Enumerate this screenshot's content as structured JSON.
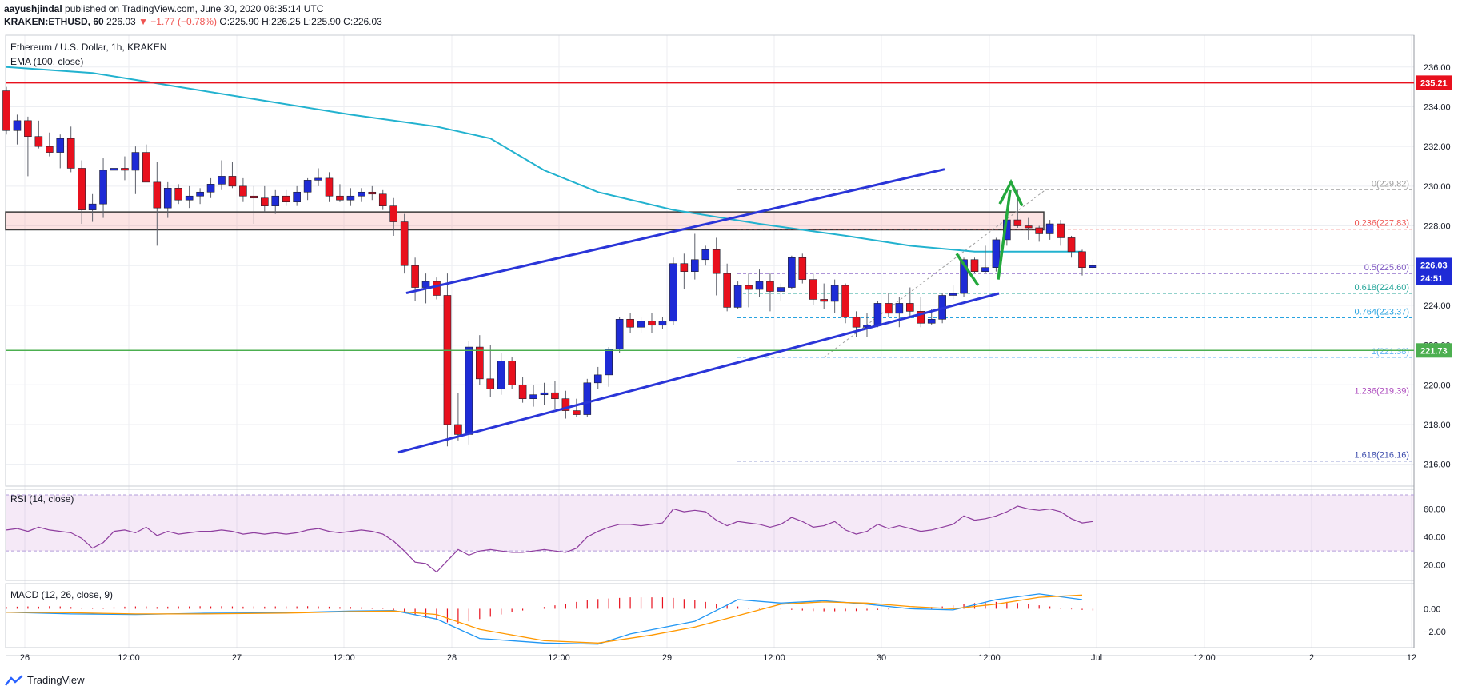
{
  "header": {
    "author": "aayushjindal",
    "published_text": "published on TradingView.com, June 30, 2020 06:35:14 UTC",
    "symbol": "KRAKEN:ETHUSD, 60",
    "last": "226.03",
    "change": "▼ −1.77 (−0.78%)",
    "ohlc": "O:225.90 H:226.25 L:225.90 C:226.03"
  },
  "legend": {
    "title": "Ethereum / U.S. Dollar, 1h, KRAKEN",
    "ema": "EMA (100, close)",
    "rsi": "RSI (14, close)",
    "macd": "MACD (12, 26, close, 9)"
  },
  "footer": {
    "brand": "TradingView"
  },
  "colors": {
    "up": "#1e2bd6",
    "down": "#e8101d",
    "ema": "#22b2cf",
    "trend": "#2a35d8",
    "resist": "#e8101d",
    "support": "#4caf50",
    "arrow": "#23a83c"
  },
  "chart_data": [
    {
      "type": "candlestick",
      "title": "Ethereum / U.S. Dollar, 1h, KRAKEN",
      "x_ticks": [
        "26",
        "12:00",
        "27",
        "12:00",
        "28",
        "12:00",
        "29",
        "12:00",
        "30",
        "12:00",
        "Jul",
        "12:00",
        "2",
        "12"
      ],
      "y_ticks": [
        "236.00",
        "234.00",
        "232.00",
        "230.00",
        "228.00",
        "226.00",
        "224.00",
        "222.00",
        "220.00",
        "218.00",
        "216.00"
      ],
      "ylim": [
        214.9,
        237.6
      ],
      "price_labels": [
        {
          "text": "235.21",
          "value": 235.21,
          "color": "#e8101d"
        },
        {
          "text": "226.03",
          "value": 226.03,
          "color": "#1e2bd6"
        },
        {
          "text": "24:51",
          "value": 225.37,
          "color": "#1e2bd6"
        },
        {
          "text": "221.73",
          "value": 221.73,
          "color": "#4caf50"
        }
      ],
      "fib_levels": [
        {
          "label": "0(229.82)",
          "value": 229.82,
          "color": "#9e9e9e"
        },
        {
          "label": "0.236(227.83)",
          "value": 227.83,
          "color": "#ef5350"
        },
        {
          "label": "0.5(225.60)",
          "value": 225.6,
          "color": "#7e57c2"
        },
        {
          "label": "0.618(224.60)",
          "value": 224.6,
          "color": "#26a69a"
        },
        {
          "label": "0.764(223.37)",
          "value": 223.37,
          "color": "#29a3e0"
        },
        {
          "label": "1(221.38)",
          "value": 221.38,
          "color": "#64b5f6"
        },
        {
          "label": "1.236(219.39)",
          "value": 219.39,
          "color": "#ab47bc"
        },
        {
          "label": "1.618(216.16)",
          "value": 216.16,
          "color": "#3949ab"
        }
      ],
      "candles": [
        [
          234.8,
          235.0,
          232.6,
          232.8
        ],
        [
          232.8,
          233.6,
          232.1,
          233.3
        ],
        [
          233.3,
          233.5,
          230.5,
          232.5
        ],
        [
          232.5,
          233.3,
          231.9,
          232.0
        ],
        [
          232.0,
          232.7,
          231.5,
          231.7
        ],
        [
          231.7,
          232.6,
          230.9,
          232.4
        ],
        [
          232.4,
          233.0,
          230.7,
          230.9
        ],
        [
          230.9,
          231.3,
          228.1,
          228.8
        ],
        [
          228.8,
          229.6,
          228.2,
          229.1
        ],
        [
          229.1,
          231.4,
          228.4,
          230.8
        ],
        [
          230.8,
          232.1,
          230.2,
          230.9
        ],
        [
          230.9,
          231.5,
          230.3,
          230.8
        ],
        [
          230.8,
          232.0,
          229.6,
          231.7
        ],
        [
          231.7,
          232.1,
          230.2,
          230.2
        ],
        [
          230.2,
          231.2,
          227.0,
          228.9
        ],
        [
          228.9,
          230.2,
          228.4,
          229.9
        ],
        [
          229.9,
          230.1,
          229.1,
          229.3
        ],
        [
          229.3,
          230.0,
          228.9,
          229.5
        ],
        [
          229.5,
          229.9,
          229.1,
          229.7
        ],
        [
          229.7,
          230.4,
          229.4,
          230.1
        ],
        [
          230.1,
          231.3,
          229.8,
          230.5
        ],
        [
          230.5,
          231.2,
          229.9,
          230.0
        ],
        [
          230.0,
          230.4,
          229.2,
          229.5
        ],
        [
          229.5,
          230.0,
          228.1,
          229.4
        ],
        [
          229.4,
          230.0,
          228.7,
          229.0
        ],
        [
          229.0,
          229.8,
          228.6,
          229.5
        ],
        [
          229.5,
          229.8,
          229.0,
          229.2
        ],
        [
          229.2,
          230.0,
          229.0,
          229.7
        ],
        [
          229.7,
          230.4,
          229.3,
          230.3
        ],
        [
          230.3,
          230.9,
          230.0,
          230.4
        ],
        [
          230.4,
          230.7,
          229.2,
          229.5
        ],
        [
          229.5,
          230.1,
          229.2,
          229.3
        ],
        [
          229.3,
          229.9,
          229.0,
          229.5
        ],
        [
          229.5,
          229.9,
          229.2,
          229.7
        ],
        [
          229.7,
          230.0,
          229.3,
          229.6
        ],
        [
          229.6,
          229.8,
          228.8,
          229.0
        ],
        [
          229.0,
          229.4,
          227.5,
          228.2
        ],
        [
          228.2,
          228.6,
          225.6,
          226.0
        ],
        [
          226.0,
          226.4,
          224.2,
          224.9
        ],
        [
          224.9,
          225.6,
          224.1,
          225.2
        ],
        [
          225.2,
          225.4,
          224.3,
          224.5
        ],
        [
          224.5,
          225.6,
          216.9,
          218.0
        ],
        [
          218.0,
          219.6,
          217.2,
          217.5
        ],
        [
          217.5,
          222.2,
          217.0,
          221.9
        ],
        [
          221.9,
          222.5,
          220.0,
          220.3
        ],
        [
          220.3,
          222.0,
          219.4,
          219.8
        ],
        [
          219.8,
          221.6,
          219.5,
          221.2
        ],
        [
          221.2,
          221.4,
          219.8,
          220.0
        ],
        [
          220.0,
          220.4,
          219.1,
          219.3
        ],
        [
          219.3,
          220.0,
          218.9,
          219.5
        ],
        [
          219.5,
          220.1,
          219.0,
          219.6
        ],
        [
          219.6,
          220.2,
          218.8,
          219.3
        ],
        [
          219.3,
          219.7,
          218.3,
          218.7
        ],
        [
          218.7,
          219.3,
          218.4,
          218.5
        ],
        [
          218.5,
          220.3,
          218.4,
          220.1
        ],
        [
          220.1,
          220.9,
          219.8,
          220.5
        ],
        [
          220.5,
          221.9,
          219.9,
          221.8
        ],
        [
          221.8,
          223.4,
          221.6,
          223.3
        ],
        [
          223.3,
          223.6,
          222.6,
          222.9
        ],
        [
          222.9,
          223.4,
          222.6,
          223.2
        ],
        [
          223.2,
          223.6,
          222.6,
          223.0
        ],
        [
          223.0,
          223.4,
          222.8,
          223.2
        ],
        [
          223.2,
          226.4,
          223.0,
          226.1
        ],
        [
          226.1,
          226.6,
          224.8,
          225.7
        ],
        [
          225.7,
          227.6,
          225.3,
          226.3
        ],
        [
          226.3,
          227.0,
          226.0,
          226.8
        ],
        [
          226.8,
          227.4,
          224.5,
          225.6
        ],
        [
          225.6,
          226.1,
          223.7,
          223.9
        ],
        [
          223.9,
          225.2,
          223.8,
          225.0
        ],
        [
          225.0,
          225.6,
          223.9,
          224.8
        ],
        [
          224.8,
          225.8,
          224.4,
          225.2
        ],
        [
          225.2,
          225.6,
          223.7,
          224.7
        ],
        [
          224.7,
          225.1,
          224.2,
          224.9
        ],
        [
          224.9,
          226.5,
          224.8,
          226.4
        ],
        [
          226.4,
          226.6,
          225.1,
          225.3
        ],
        [
          225.3,
          225.6,
          224.0,
          224.3
        ],
        [
          224.3,
          225.1,
          223.8,
          224.2
        ],
        [
          224.2,
          225.3,
          223.6,
          225.0
        ],
        [
          225.0,
          225.1,
          223.1,
          223.4
        ],
        [
          223.4,
          223.7,
          222.4,
          222.9
        ],
        [
          222.9,
          223.6,
          222.4,
          223.0
        ],
        [
          223.0,
          224.2,
          222.9,
          224.1
        ],
        [
          224.1,
          224.6,
          223.4,
          223.6
        ],
        [
          223.6,
          224.4,
          222.9,
          224.1
        ],
        [
          224.1,
          224.9,
          223.4,
          223.7
        ],
        [
          223.7,
          224.4,
          222.9,
          223.1
        ],
        [
          223.1,
          223.8,
          223.0,
          223.3
        ],
        [
          223.3,
          224.6,
          223.1,
          224.5
        ],
        [
          224.5,
          225.0,
          224.3,
          224.6
        ],
        [
          224.6,
          226.4,
          224.4,
          226.3
        ],
        [
          226.3,
          226.4,
          225.6,
          225.7
        ],
        [
          225.7,
          227.0,
          225.6,
          225.9
        ],
        [
          225.9,
          227.4,
          225.7,
          227.3
        ],
        [
          227.3,
          228.5,
          227.0,
          228.3
        ],
        [
          228.3,
          229.8,
          227.9,
          228.0
        ],
        [
          228.0,
          228.4,
          227.3,
          227.9
        ],
        [
          227.9,
          228.0,
          227.2,
          227.6
        ],
        [
          227.6,
          228.3,
          227.3,
          228.1
        ],
        [
          228.1,
          228.3,
          227.0,
          227.4
        ],
        [
          227.4,
          227.5,
          226.4,
          226.7
        ],
        [
          226.7,
          226.8,
          225.5,
          225.9
        ],
        [
          225.9,
          226.3,
          225.8,
          226.0
        ]
      ],
      "ema": [
        [
          0,
          236.0
        ],
        [
          8,
          235.7
        ],
        [
          16,
          235.0
        ],
        [
          24,
          234.3
        ],
        [
          32,
          233.6
        ],
        [
          40,
          233.0
        ],
        [
          45,
          232.4
        ],
        [
          50,
          230.8
        ],
        [
          55,
          229.7
        ],
        [
          62,
          228.8
        ],
        [
          70,
          228.1
        ],
        [
          78,
          227.5
        ],
        [
          84,
          227.0
        ],
        [
          90,
          226.7
        ],
        [
          96,
          226.7
        ],
        [
          100,
          226.7
        ]
      ]
    },
    {
      "type": "line",
      "title": "RSI (14, close)",
      "y_ticks": [
        "60.00",
        "40.00",
        "20.00"
      ],
      "ylim": [
        9,
        74
      ],
      "band": [
        30,
        70
      ],
      "values": [
        45,
        46,
        44,
        47,
        45,
        44,
        43,
        39,
        32,
        36,
        44,
        45,
        43,
        47,
        41,
        44,
        42,
        43,
        44,
        44,
        45,
        44,
        42,
        43,
        42,
        43,
        42,
        43,
        45,
        46,
        44,
        43,
        44,
        45,
        44,
        42,
        37,
        30,
        22,
        21,
        15,
        23,
        31,
        27,
        30,
        31,
        30,
        29,
        29,
        30,
        31,
        30,
        29,
        32,
        40,
        44,
        47,
        49,
        49,
        48,
        49,
        50,
        60,
        58,
        59,
        58,
        52,
        48,
        51,
        50,
        49,
        47,
        49,
        54,
        51,
        47,
        48,
        51,
        45,
        42,
        44,
        49,
        46,
        48,
        46,
        44,
        45,
        47,
        49,
        55,
        52,
        53,
        55,
        58,
        62,
        60,
        59,
        60,
        58,
        53,
        50,
        51
      ]
    },
    {
      "type": "bar",
      "title": "MACD (12, 26, close, 9)",
      "y_ticks": [
        "0.00",
        "−2.00"
      ],
      "ylim": [
        -3.4,
        2.2
      ],
      "histogram": [
        0.15,
        0.18,
        0.2,
        0.18,
        0.22,
        0.2,
        0.15,
        0.1,
        0.05,
        0.1,
        0.15,
        0.18,
        0.2,
        0.2,
        0.15,
        0.18,
        0.2,
        0.2,
        0.22,
        0.2,
        0.22,
        0.2,
        0.18,
        0.2,
        0.18,
        0.2,
        0.2,
        0.2,
        0.22,
        0.2,
        0.18,
        0.15,
        0.15,
        0.12,
        0.1,
        0.05,
        -0.1,
        -0.3,
        -0.55,
        -0.8,
        -1.0,
        -1.2,
        -1.3,
        -1.1,
        -0.9,
        -0.7,
        -0.5,
        -0.3,
        -0.15,
        0.0,
        0.15,
        0.3,
        0.45,
        0.6,
        0.75,
        0.85,
        0.9,
        0.95,
        1.0,
        1.0,
        1.0,
        1.0,
        0.95,
        0.85,
        0.75,
        0.6,
        0.45,
        0.3,
        0.2,
        0.1,
        0.05,
        0.0,
        -0.05,
        -0.1,
        -0.15,
        -0.2,
        -0.22,
        -0.22,
        -0.2,
        -0.2,
        -0.15,
        -0.1,
        -0.05,
        0.0,
        0.05,
        0.1,
        0.15,
        0.2,
        0.3,
        0.4,
        0.5,
        0.55,
        0.6,
        0.6,
        0.5,
        0.4,
        0.3,
        0.2,
        0.1,
        -0.05,
        -0.1,
        -0.15
      ],
      "macd": [
        [
          0,
          -0.3
        ],
        [
          6,
          -0.45
        ],
        [
          12,
          -0.5
        ],
        [
          18,
          -0.4
        ],
        [
          26,
          -0.35
        ],
        [
          32,
          -0.2
        ],
        [
          36,
          -0.15
        ],
        [
          40,
          -0.9
        ],
        [
          44,
          -2.6
        ],
        [
          50,
          -3.0
        ],
        [
          55,
          -3.1
        ],
        [
          58,
          -2.2
        ],
        [
          64,
          -1.1
        ],
        [
          68,
          0.8
        ],
        [
          72,
          0.5
        ],
        [
          76,
          0.7
        ],
        [
          80,
          0.4
        ],
        [
          84,
          0.0
        ],
        [
          88,
          -0.1
        ],
        [
          92,
          0.8
        ],
        [
          96,
          1.3
        ],
        [
          100,
          0.8
        ]
      ],
      "signal": [
        [
          0,
          -0.3
        ],
        [
          6,
          -0.35
        ],
        [
          12,
          -0.45
        ],
        [
          18,
          -0.45
        ],
        [
          26,
          -0.38
        ],
        [
          32,
          -0.25
        ],
        [
          36,
          -0.2
        ],
        [
          40,
          -0.5
        ],
        [
          44,
          -1.8
        ],
        [
          50,
          -2.8
        ],
        [
          55,
          -3.0
        ],
        [
          60,
          -2.3
        ],
        [
          64,
          -1.6
        ],
        [
          68,
          -0.6
        ],
        [
          72,
          0.4
        ],
        [
          76,
          0.6
        ],
        [
          80,
          0.5
        ],
        [
          84,
          0.2
        ],
        [
          88,
          0.0
        ],
        [
          92,
          0.4
        ],
        [
          96,
          1.0
        ],
        [
          100,
          1.2
        ]
      ]
    }
  ]
}
